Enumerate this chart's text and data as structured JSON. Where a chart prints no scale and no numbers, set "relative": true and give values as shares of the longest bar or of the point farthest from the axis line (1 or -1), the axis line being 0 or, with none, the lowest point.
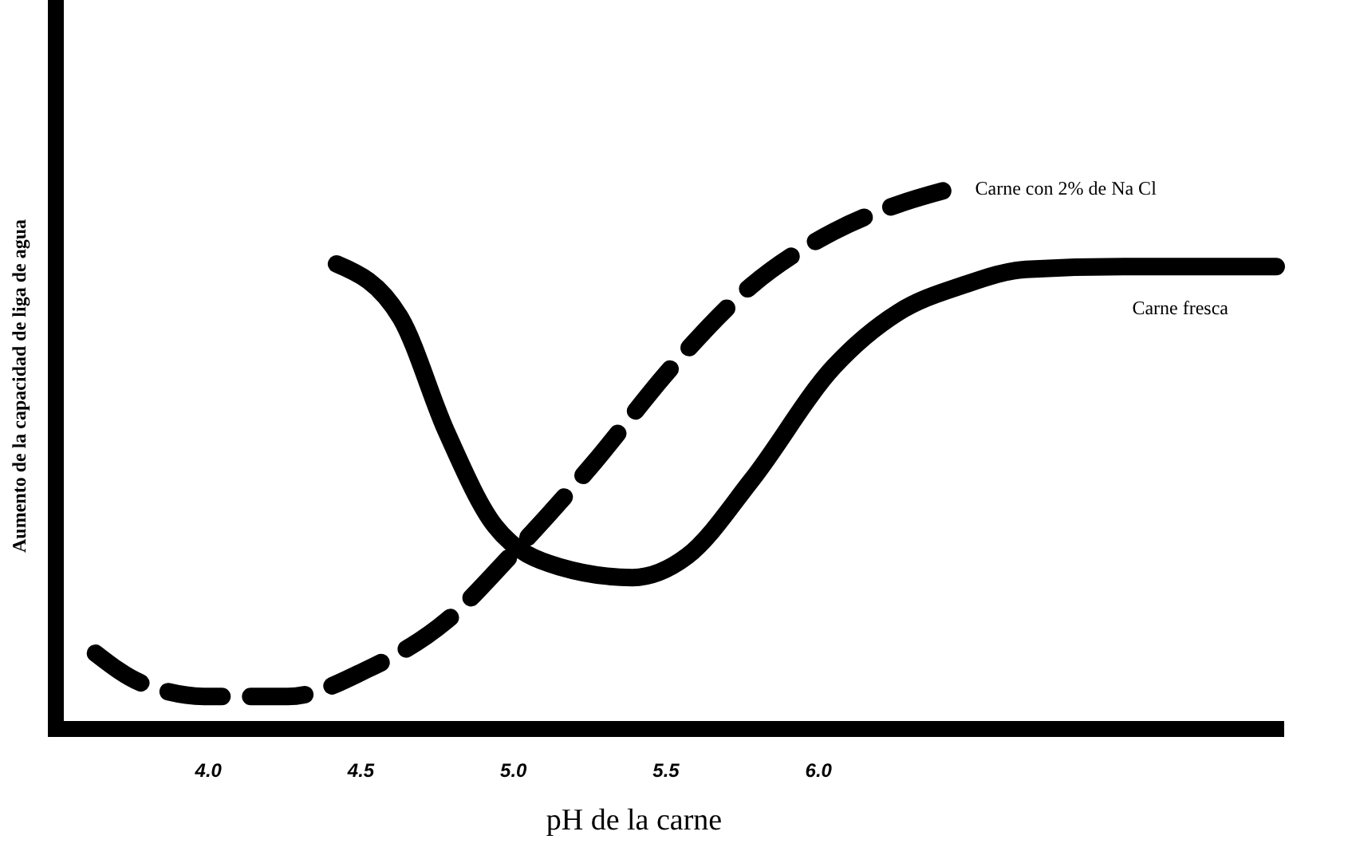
{
  "chart_data": {
    "type": "line",
    "relative": true,
    "xlabel": "pH de la carne",
    "ylabel": "Aumento de la capacidad de liga de agua",
    "xlim": [
      3.5,
      7.5
    ],
    "xticks": [
      {
        "value": 4,
        "label": "4.0"
      },
      {
        "value": 4.5,
        "label": "4.5"
      },
      {
        "value": 5,
        "label": "5.0"
      },
      {
        "value": 5.5,
        "label": "5.5"
      },
      {
        "value": 6,
        "label": "6.0"
      }
    ],
    "tick_labels": "x",
    "grid": false,
    "series": [
      {
        "name": "Carne con 2% de Na Cl",
        "color": "#000000",
        "line_style": "dashed",
        "x": [
          3.63,
          3.78,
          4.0,
          4.26,
          4.52,
          4.78,
          4.99,
          5.26,
          5.52,
          5.78,
          6.05,
          6.26,
          6.44
        ],
        "values": [
          0.14,
          0.085,
          0.06,
          0.06,
          0.11,
          0.2,
          0.32,
          0.49,
          0.67,
          0.82,
          0.92,
          0.97,
          1.0
        ]
      },
      {
        "name": "Carne fresca",
        "color": "#000000",
        "line_style": "solid",
        "x": [
          4.42,
          4.63,
          4.78,
          4.94,
          5.15,
          5.39,
          5.57,
          5.78,
          6.05,
          6.26,
          6.47,
          6.68,
          7.0,
          7.5
        ],
        "values": [
          0.86,
          0.76,
          0.55,
          0.375,
          0.3,
          0.28,
          0.32,
          0.46,
          0.67,
          0.77,
          0.82,
          0.85,
          0.855,
          0.855
        ]
      }
    ]
  }
}
